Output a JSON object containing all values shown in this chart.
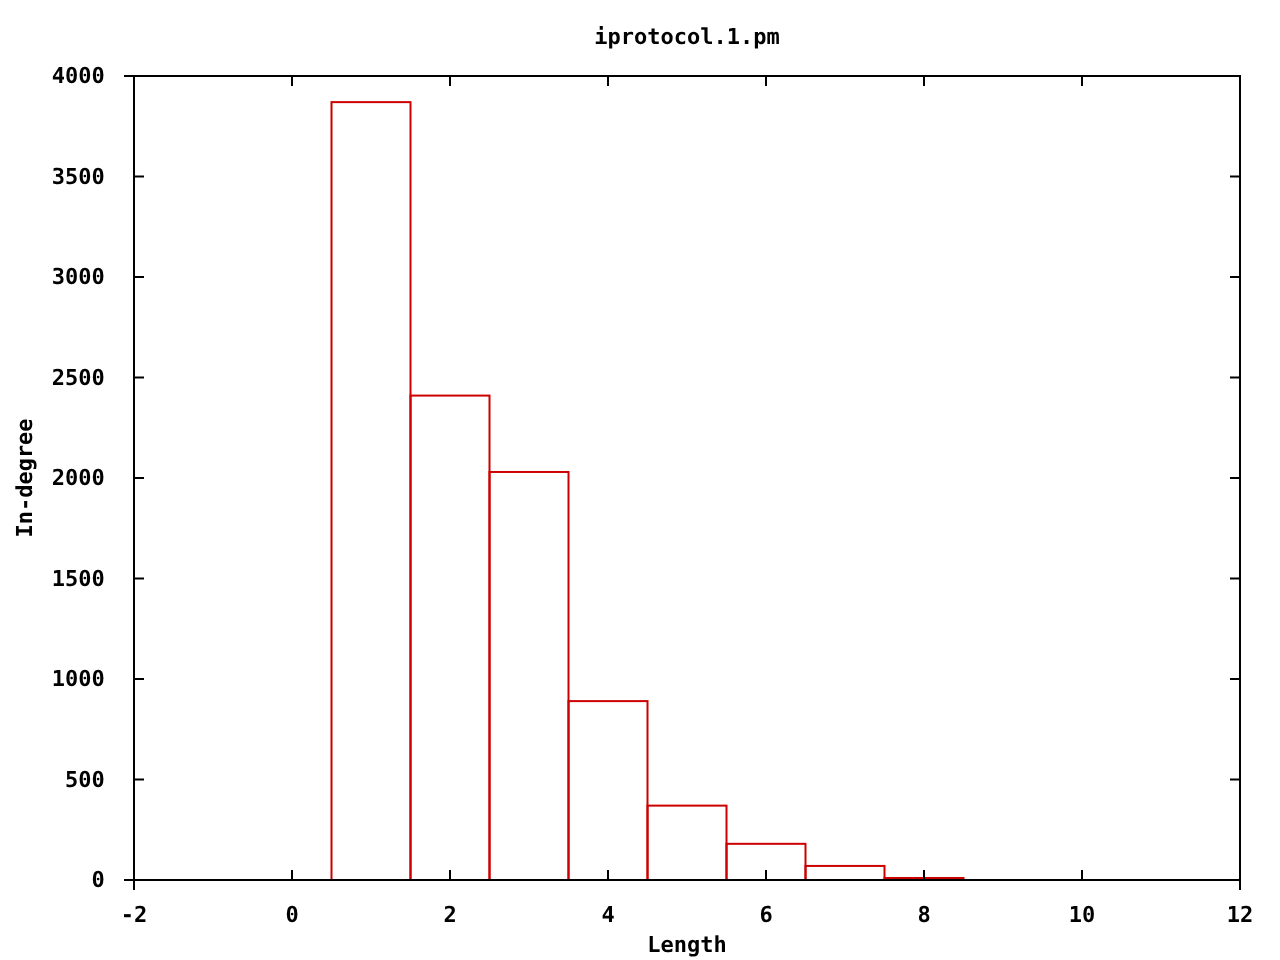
{
  "chart_data": {
    "type": "histogram",
    "title": "iprotocol.1.pm",
    "xlabel": "Length",
    "ylabel": "In-degree",
    "bins": [
      0.5,
      1.5,
      2.5,
      3.5,
      4.5,
      5.5,
      6.5,
      7.5,
      8.5
    ],
    "values": [
      3870,
      2410,
      2030,
      890,
      370,
      180,
      70,
      10
    ],
    "color": "#cc0000",
    "xlim": [
      -2,
      12
    ],
    "xticks": [
      -2,
      0,
      2,
      4,
      6,
      8,
      10,
      12
    ],
    "ylim": [
      0,
      4000
    ],
    "yticks": [
      0,
      500,
      1000,
      1500,
      2000,
      2500,
      3000,
      3500,
      4000
    ],
    "grid": false
  }
}
